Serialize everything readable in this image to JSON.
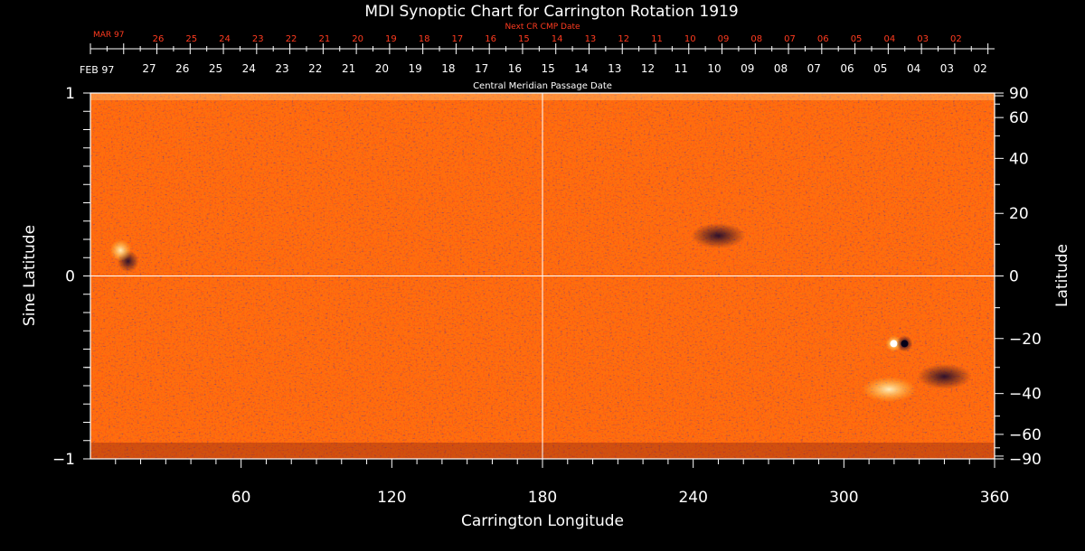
{
  "chart_data": {
    "type": "heatmap",
    "title": "MDI Synoptic Chart for Carrington Rotation 1919",
    "xlabel": "Carrington Longitude",
    "ylabel_left": "Sine Latitude",
    "ylabel_right": "Latitude",
    "xlim": [
      0,
      360
    ],
    "ylim_sine": [
      -1,
      1
    ],
    "x_ticks": [
      "60",
      "120",
      "180",
      "240",
      "300",
      "360"
    ],
    "y_ticks_left": [
      "1",
      "0",
      "−1"
    ],
    "y_ticks_right": [
      "90",
      "60",
      "40",
      "20",
      "0",
      "−20",
      "−40",
      "−60",
      "−90"
    ],
    "next_cr_axis": {
      "label": "Next CR CMP Date",
      "month_label": "MAR 97",
      "days": [
        "26",
        "25",
        "24",
        "23",
        "22",
        "21",
        "20",
        "19",
        "18",
        "17",
        "16",
        "15",
        "14",
        "13",
        "12",
        "11",
        "10",
        "09",
        "08",
        "07",
        "06",
        "05",
        "04",
        "03",
        "02"
      ]
    },
    "cmp_axis": {
      "label": "Central Meridian Passage Date",
      "month_label": "FEB 97",
      "days": [
        "27",
        "26",
        "25",
        "24",
        "23",
        "22",
        "21",
        "20",
        "19",
        "18",
        "17",
        "16",
        "15",
        "14",
        "13",
        "12",
        "11",
        "10",
        "09",
        "08",
        "07",
        "06",
        "05",
        "04",
        "03",
        "02"
      ]
    },
    "colors": {
      "background": "#ff5a12",
      "text": "#ffffff",
      "accent": "#ff3b1f",
      "negative": "#1a0840",
      "positive": "#fff070"
    },
    "grid": {
      "vertical_at_longitude": 180,
      "horizontal_at_sine_latitude": 0
    },
    "features": [
      {
        "name": "negative polarity spot",
        "longitude": 15,
        "sine_latitude": 0.08
      },
      {
        "name": "positive polarity plage",
        "longitude": 12,
        "sine_latitude": 0.14
      },
      {
        "name": "bipolar active region",
        "longitude": 322,
        "sine_latitude": -0.37
      },
      {
        "name": "negative network region",
        "longitude": 340,
        "sine_latitude": -0.55
      },
      {
        "name": "positive network region",
        "longitude": 318,
        "sine_latitude": -0.62
      },
      {
        "name": "negative network region",
        "longitude": 250,
        "sine_latitude": 0.22
      }
    ]
  }
}
